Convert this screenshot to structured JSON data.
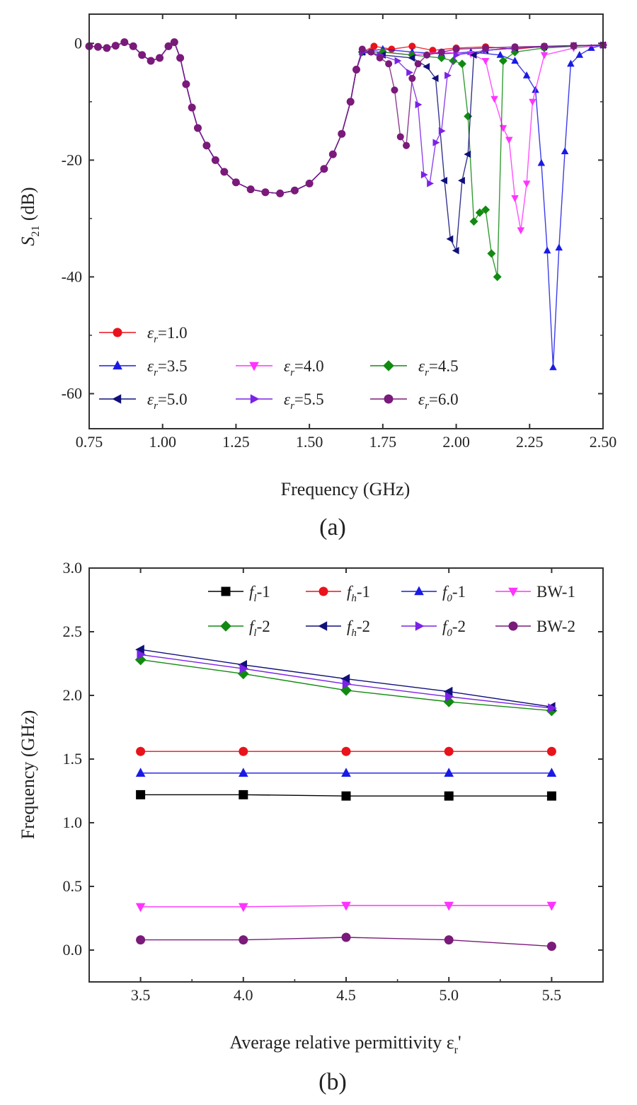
{
  "panels": [
    {
      "panel_label": "(a)",
      "chart_data": {
        "type": "line",
        "title": "",
        "xlabel": "Frequency (GHz)",
        "ylabel_main": "S",
        "ylabel_sub": "21",
        "ylabel_unit": " (dB)",
        "xlim": [
          0.75,
          2.5
        ],
        "ylim": [
          -66,
          5
        ],
        "xticks": [
          0.75,
          1.0,
          1.25,
          1.5,
          1.75,
          2.0,
          2.25,
          2.5
        ],
        "xtick_labels": [
          "0.75",
          "1.00",
          "1.25",
          "1.50",
          "1.75",
          "2.00",
          "2.25",
          "2.50"
        ],
        "yticks": [
          0,
          -20,
          -40,
          -60
        ],
        "ytick_labels": [
          "0",
          "-20",
          "-40",
          "-60"
        ],
        "legend_position": "bottom-left",
        "legend": [
          {
            "eps": "1.0",
            "color": "#e8131b",
            "marker": "circle"
          },
          {
            "eps": "3.5",
            "color": "#1a1ae6",
            "marker": "triangle-up"
          },
          {
            "eps": "4.0",
            "color": "#ff33ff",
            "marker": "triangle-down"
          },
          {
            "eps": "4.5",
            "color": "#118a11",
            "marker": "diamond"
          },
          {
            "eps": "5.0",
            "color": "#10107a",
            "marker": "triangle-left"
          },
          {
            "eps": "5.5",
            "color": "#7b22e6",
            "marker": "triangle-right"
          },
          {
            "eps": "6.0",
            "color": "#7a1a7a",
            "marker": "circle"
          }
        ],
        "legend_prefix": "ε",
        "legend_sub": "r",
        "common_curve": {
          "x": [
            0.75,
            0.78,
            0.81,
            0.84,
            0.87,
            0.9,
            0.93,
            0.96,
            0.99,
            1.02,
            1.04,
            1.06,
            1.08,
            1.1,
            1.12,
            1.15,
            1.18,
            1.21,
            1.25,
            1.3,
            1.35,
            1.4,
            1.45,
            1.5,
            1.55,
            1.58,
            1.61,
            1.64,
            1.66
          ],
          "y": [
            -0.5,
            -0.6,
            -0.8,
            -0.4,
            0.2,
            -0.5,
            -2.0,
            -3.0,
            -2.5,
            -0.5,
            0.2,
            -2.5,
            -7.0,
            -11.0,
            -14.5,
            -17.5,
            -20.0,
            -22.0,
            -23.8,
            -25.0,
            -25.5,
            -25.7,
            -25.2,
            -24.0,
            -21.5,
            -19.0,
            -15.5,
            -10.0,
            -4.5
          ]
        },
        "notches": [
          {
            "name": "ε_r=1.0",
            "color": "#e8131b",
            "marker": "circle",
            "x": [
              1.68,
              1.72,
              1.78,
              1.85,
              1.92,
              2.0,
              2.1,
              2.2,
              2.3,
              2.4,
              2.5
            ],
            "y": [
              -1.5,
              -0.5,
              -1.0,
              -0.5,
              -1.2,
              -0.8,
              -0.6,
              -1.0,
              -0.5,
              -0.4,
              -0.3
            ]
          },
          {
            "name": "ε_r=3.5",
            "color": "#1a1ae6",
            "marker": "triangle-up",
            "x": [
              1.68,
              1.75,
              1.85,
              1.95,
              2.05,
              2.15,
              2.2,
              2.24,
              2.27,
              2.29,
              2.31,
              2.33,
              2.35,
              2.37,
              2.39,
              2.42,
              2.46,
              2.5
            ],
            "y": [
              -1.5,
              -1.0,
              -1.5,
              -1.8,
              -1.5,
              -2.0,
              -3.0,
              -5.5,
              -8.0,
              -20.5,
              -35.5,
              -55.5,
              -35.0,
              -18.5,
              -3.5,
              -2.0,
              -0.8,
              -0.3
            ]
          },
          {
            "name": "ε_r=4.0",
            "color": "#ff33ff",
            "marker": "triangle-down",
            "x": [
              1.68,
              1.75,
              1.85,
              1.95,
              2.05,
              2.1,
              2.13,
              2.16,
              2.18,
              2.2,
              2.22,
              2.24,
              2.26,
              2.3,
              2.4,
              2.5
            ],
            "y": [
              -1.5,
              -1.5,
              -2.0,
              -1.5,
              -1.8,
              -3.0,
              -9.5,
              -14.5,
              -16.5,
              -26.5,
              -32.0,
              -24.0,
              -10.0,
              -2.0,
              -0.8,
              -0.3
            ]
          },
          {
            "name": "ε_r=4.5",
            "color": "#118a11",
            "marker": "diamond",
            "x": [
              1.68,
              1.75,
              1.85,
              1.95,
              1.99,
              2.02,
              2.04,
              2.06,
              2.08,
              2.1,
              2.12,
              2.14,
              2.16,
              2.2,
              2.3,
              2.4,
              2.5
            ],
            "y": [
              -1.5,
              -1.5,
              -2.0,
              -2.5,
              -3.0,
              -3.5,
              -12.5,
              -30.5,
              -29.0,
              -28.5,
              -36.0,
              -40.0,
              -3.0,
              -1.5,
              -0.8,
              -0.5,
              -0.3
            ]
          },
          {
            "name": "ε_r=5.0",
            "color": "#10107a",
            "marker": "triangle-left",
            "x": [
              1.68,
              1.75,
              1.85,
              1.9,
              1.93,
              1.96,
              1.98,
              2.0,
              2.02,
              2.04,
              2.06,
              2.1,
              2.2,
              2.3,
              2.4,
              2.5
            ],
            "y": [
              -1.5,
              -2.0,
              -2.5,
              -4.0,
              -6.0,
              -23.5,
              -33.5,
              -35.5,
              -23.5,
              -19.0,
              -2.0,
              -1.2,
              -0.8,
              -0.6,
              -0.4,
              -0.3
            ]
          },
          {
            "name": "ε_r=5.5",
            "color": "#7b22e6",
            "marker": "triangle-right",
            "x": [
              1.68,
              1.74,
              1.8,
              1.84,
              1.87,
              1.89,
              1.91,
              1.93,
              1.95,
              1.97,
              2.0,
              2.1,
              2.2,
              2.3,
              2.4,
              2.5
            ],
            "y": [
              -1.5,
              -2.0,
              -3.0,
              -5.0,
              -10.5,
              -22.5,
              -24.0,
              -17.0,
              -15.0,
              -5.5,
              -2.0,
              -1.2,
              -0.8,
              -0.6,
              -0.4,
              -0.3
            ]
          },
          {
            "name": "ε_r=6.0",
            "color": "#7a1a7a",
            "marker": "circle",
            "x": [
              1.68,
              1.71,
              1.74,
              1.77,
              1.79,
              1.81,
              1.83,
              1.85,
              1.87,
              1.9,
              1.95,
              2.0,
              2.1,
              2.2,
              2.3,
              2.4,
              2.5
            ],
            "y": [
              -1.0,
              -1.5,
              -2.5,
              -3.5,
              -8.0,
              -16.0,
              -17.5,
              -6.0,
              -3.5,
              -2.0,
              -1.5,
              -1.0,
              -0.8,
              -0.6,
              -0.5,
              -0.4,
              -0.3
            ]
          }
        ]
      }
    },
    {
      "panel_label": "(b)",
      "chart_data": {
        "type": "line",
        "title": "",
        "xlabel": "Average relative permittivity ε",
        "xlabel_sub": "r",
        "xlabel_suffix": "'",
        "ylabel": "Frequency (GHz)",
        "xlim": [
          3.25,
          5.75
        ],
        "ylim": [
          -0.25,
          3.0
        ],
        "xticks": [
          3.5,
          4.0,
          4.5,
          5.0,
          5.5
        ],
        "xtick_labels": [
          "3.5",
          "4.0",
          "4.5",
          "5.0",
          "5.5"
        ],
        "yticks": [
          0.0,
          0.5,
          1.0,
          1.5,
          2.0,
          2.5,
          3.0
        ],
        "ytick_labels": [
          "0.0",
          "0.5",
          "1.0",
          "1.5",
          "2.0",
          "2.5",
          "3.0"
        ],
        "legend_position": "top-right",
        "x": [
          3.5,
          4.0,
          4.5,
          5.0,
          5.5
        ],
        "series": [
          {
            "name": "f_l-1",
            "label_main": "f",
            "label_sub": "l",
            "label_suffix": "-1",
            "color": "#000000",
            "marker": "square",
            "values": [
              1.22,
              1.22,
              1.21,
              1.21,
              1.21
            ]
          },
          {
            "name": "f_h-1",
            "label_main": "f",
            "label_sub": "h",
            "label_suffix": "-1",
            "color": "#e8131b",
            "marker": "circle",
            "values": [
              1.56,
              1.56,
              1.56,
              1.56,
              1.56
            ]
          },
          {
            "name": "f_0-1",
            "label_main": "f",
            "label_sub": "0",
            "label_suffix": "-1",
            "color": "#1a1ae6",
            "marker": "triangle-up",
            "values": [
              1.39,
              1.39,
              1.39,
              1.39,
              1.39
            ]
          },
          {
            "name": "BW-1",
            "label_main": "BW-1",
            "label_sub": "",
            "label_suffix": "",
            "color": "#ff33ff",
            "marker": "triangle-down",
            "values": [
              0.34,
              0.34,
              0.35,
              0.35,
              0.35
            ]
          },
          {
            "name": "f_l-2",
            "label_main": "f",
            "label_sub": "l",
            "label_suffix": "-2",
            "color": "#118a11",
            "marker": "diamond",
            "values": [
              2.28,
              2.17,
              2.04,
              1.95,
              1.88
            ]
          },
          {
            "name": "f_h-2",
            "label_main": "f",
            "label_sub": "h",
            "label_suffix": "-2",
            "color": "#10107a",
            "marker": "triangle-left",
            "values": [
              2.36,
              2.24,
              2.13,
              2.03,
              1.91
            ]
          },
          {
            "name": "f_0-2",
            "label_main": "f",
            "label_sub": "0",
            "label_suffix": "-2",
            "color": "#7b22e6",
            "marker": "triangle-right",
            "values": [
              2.32,
              2.21,
              2.09,
              1.99,
              1.9
            ]
          },
          {
            "name": "BW-2",
            "label_main": "BW-2",
            "label_sub": "",
            "label_suffix": "",
            "color": "#7a1a7a",
            "marker": "circle",
            "values": [
              0.08,
              0.08,
              0.1,
              0.08,
              0.03
            ]
          }
        ]
      }
    }
  ]
}
